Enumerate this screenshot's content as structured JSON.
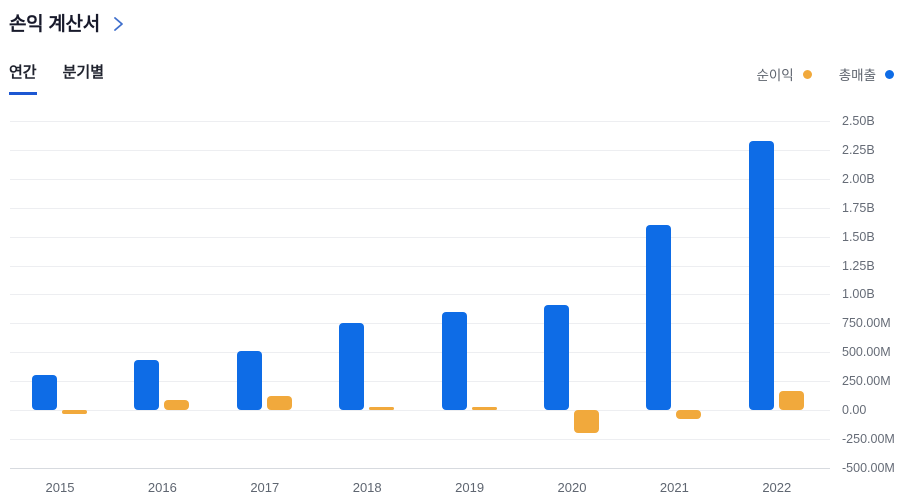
{
  "header": {
    "title": "손익 계산서"
  },
  "tabs": [
    {
      "label": "연간",
      "active": true
    },
    {
      "label": "분기별",
      "active": false
    }
  ],
  "legend": [
    {
      "label": "순이익",
      "color": "#f1a93c"
    },
    {
      "label": "총매출",
      "color": "#0e6ce6"
    }
  ],
  "chart_data": {
    "type": "bar",
    "title": "손익 계산서",
    "categories": [
      "2015",
      "2016",
      "2017",
      "2018",
      "2019",
      "2020",
      "2021",
      "2022"
    ],
    "series": [
      {
        "name": "총매출",
        "color": "#0e6ce6",
        "values_millions": [
          300,
          430,
          510,
          750,
          850,
          910,
          1600,
          2330
        ]
      },
      {
        "name": "순이익",
        "color": "#f1a93c",
        "values_millions": [
          -30,
          85,
          120,
          30,
          30,
          -200,
          -80,
          165
        ]
      }
    ],
    "y_ticks": [
      {
        "label": "2.50B",
        "value_millions": 2500
      },
      {
        "label": "2.25B",
        "value_millions": 2250
      },
      {
        "label": "2.00B",
        "value_millions": 2000
      },
      {
        "label": "1.75B",
        "value_millions": 1750
      },
      {
        "label": "1.50B",
        "value_millions": 1500
      },
      {
        "label": "1.25B",
        "value_millions": 1250
      },
      {
        "label": "1.00B",
        "value_millions": 1000
      },
      {
        "label": "750.00M",
        "value_millions": 750
      },
      {
        "label": "500.00M",
        "value_millions": 500
      },
      {
        "label": "250.00M",
        "value_millions": 250
      },
      {
        "label": "0.00",
        "value_millions": 0
      },
      {
        "label": "-250.00M",
        "value_millions": -250
      },
      {
        "label": "-500.00M",
        "value_millions": -500
      }
    ],
    "ylim_millions": [
      -500,
      2500
    ],
    "y_axis_side": "right",
    "grid": true,
    "legend_position": "top-right"
  }
}
